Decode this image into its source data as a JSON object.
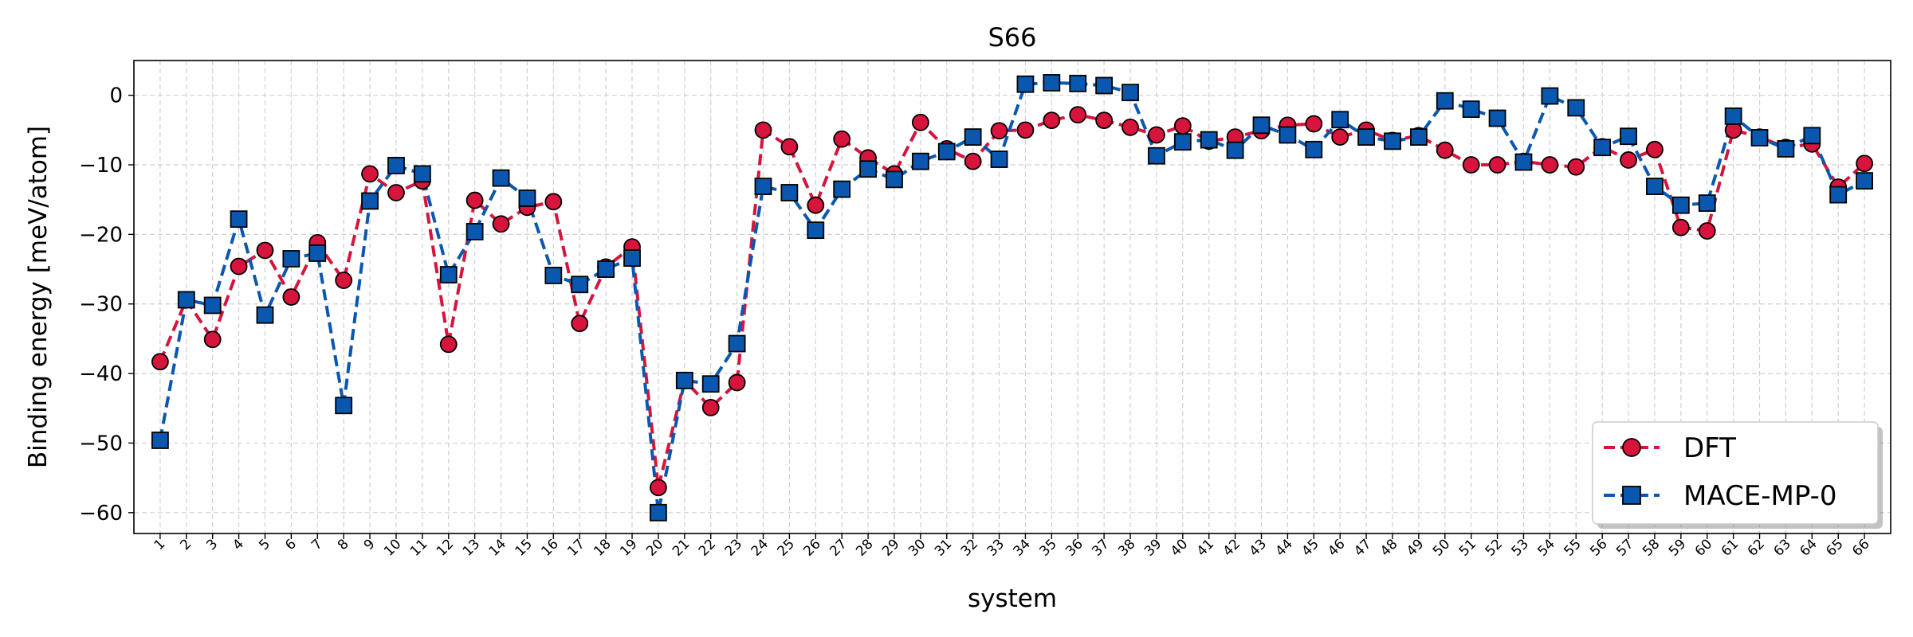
{
  "chart_data": {
    "type": "line",
    "title": "S66",
    "xlabel": "system",
    "ylabel": "Binding energy [meV/atom]",
    "x": [
      1,
      2,
      3,
      4,
      5,
      6,
      7,
      8,
      9,
      10,
      11,
      12,
      13,
      14,
      15,
      16,
      17,
      18,
      19,
      20,
      21,
      22,
      23,
      24,
      25,
      26,
      27,
      28,
      29,
      30,
      31,
      32,
      33,
      34,
      35,
      36,
      37,
      38,
      39,
      40,
      41,
      42,
      43,
      44,
      45,
      46,
      47,
      48,
      49,
      50,
      51,
      52,
      53,
      54,
      55,
      56,
      57,
      58,
      59,
      60,
      61,
      62,
      63,
      64,
      65,
      66
    ],
    "xlim": [
      0,
      67
    ],
    "ylim": [
      -63,
      5
    ],
    "yticks": [
      0,
      -10,
      -20,
      -30,
      -40,
      -50,
      -60
    ],
    "grid": true,
    "legend_position": "lower-right",
    "series": [
      {
        "name": "DFT",
        "color": "#d6143c",
        "marker": "circle",
        "values": [
          -38.3,
          -29.4,
          -35.1,
          -24.6,
          -22.3,
          -29.0,
          -21.2,
          -26.6,
          -11.3,
          -14.0,
          -12.3,
          -35.8,
          -15.1,
          -18.5,
          -16.1,
          -15.3,
          -32.8,
          -24.7,
          -21.8,
          -56.4,
          -41.0,
          -44.9,
          -41.3,
          -5.0,
          -7.4,
          -15.8,
          -6.3,
          -9.0,
          -11.3,
          -3.9,
          -7.7,
          -9.5,
          -5.1,
          -5.0,
          -3.6,
          -2.8,
          -3.6,
          -4.6,
          -5.7,
          -4.4,
          -6.6,
          -6.0,
          -5.1,
          -4.3,
          -4.1,
          -6.0,
          -5.0,
          -6.5,
          -5.8,
          -7.9,
          -10.0,
          -10.0,
          -9.5,
          -10.0,
          -10.3,
          -7.4,
          -9.3,
          -7.8,
          -19.0,
          -19.5,
          -5.0,
          -6.0,
          -7.5,
          -7.0,
          -13.2,
          -9.8
        ]
      },
      {
        "name": "MACE-MP-0",
        "color": "#0a57b0",
        "marker": "square",
        "values": [
          -49.6,
          -29.4,
          -30.2,
          -17.8,
          -31.6,
          -23.5,
          -22.7,
          -44.6,
          -15.2,
          -10.1,
          -11.3,
          -25.8,
          -19.6,
          -11.9,
          -14.8,
          -25.9,
          -27.2,
          -25.0,
          -23.4,
          -60.0,
          -41.0,
          -41.5,
          -35.7,
          -13.1,
          -14.0,
          -19.4,
          -13.5,
          -10.6,
          -12.1,
          -9.5,
          -8.1,
          -6.0,
          -9.2,
          1.6,
          1.8,
          1.7,
          1.4,
          0.4,
          -8.7,
          -6.7,
          -6.4,
          -7.9,
          -4.3,
          -5.7,
          -7.8,
          -3.5,
          -6.0,
          -6.6,
          -6.0,
          -0.8,
          -2.0,
          -3.3,
          -9.6,
          -0.1,
          -1.8,
          -7.5,
          -5.9,
          -13.1,
          -15.8,
          -15.5,
          -3.0,
          -6.1,
          -7.7,
          -5.8,
          -14.3,
          -12.3
        ]
      }
    ]
  }
}
